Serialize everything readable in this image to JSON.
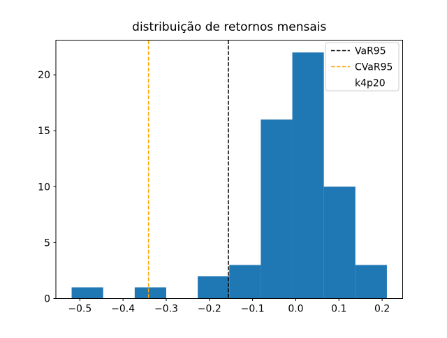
{
  "figure": {
    "background": "#ffffff"
  },
  "chart_data": {
    "type": "bar",
    "subtype": "histogram",
    "title": "distribuição de retornos mensais",
    "xlabel": "",
    "ylabel": "",
    "bin_edges": [
      -0.519,
      -0.446,
      -0.373,
      -0.3,
      -0.227,
      -0.154,
      -0.081,
      -0.008,
      0.065,
      0.138,
      0.211
    ],
    "counts": [
      1,
      0,
      1,
      0,
      2,
      3,
      16,
      22,
      10,
      3
    ],
    "bar_color": "#1f77b4",
    "grid": false,
    "xlim": [
      -0.5555,
      0.2475
    ],
    "ylim": [
      0,
      23.1
    ],
    "xticks": {
      "values": [
        -0.5,
        -0.4,
        -0.3,
        -0.2,
        -0.1,
        0.0,
        0.1,
        0.2
      ],
      "labels": [
        "−0.5",
        "−0.4",
        "−0.3",
        "−0.2",
        "−0.1",
        "0.0",
        "0.1",
        "0.2"
      ]
    },
    "yticks": {
      "values": [
        0,
        5,
        10,
        15,
        20
      ],
      "labels": [
        "0",
        "5",
        "10",
        "15",
        "20"
      ]
    },
    "vlines": [
      {
        "label": "VaR95",
        "x": -0.156,
        "color": "#000000",
        "style": "dashed"
      },
      {
        "label": "CVaR95",
        "x": -0.341,
        "color": "#ffa500",
        "style": "dashed"
      }
    ],
    "legend": {
      "position": "upper right",
      "border_color": "#cccccc",
      "entries": [
        {
          "label": "VaR95",
          "handle": "dashed-line",
          "color": "#000000"
        },
        {
          "label": "CVaR95",
          "handle": "dashed-line",
          "color": "#ffa500"
        },
        {
          "label": "k4p20",
          "handle": "none",
          "color": null
        }
      ]
    }
  }
}
